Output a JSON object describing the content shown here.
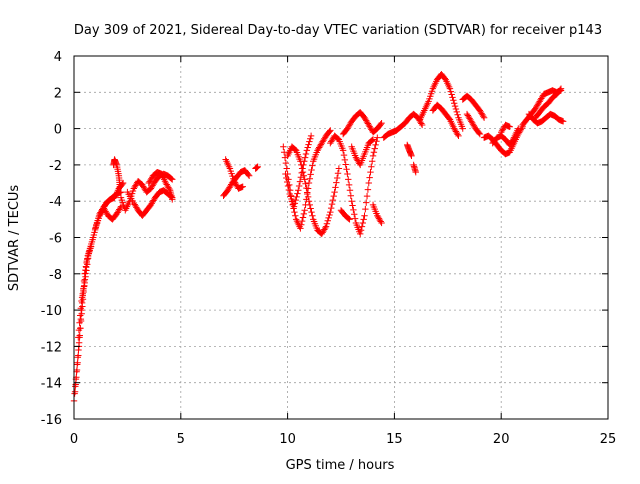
{
  "chart_data": {
    "type": "scatter",
    "title": "Day 309 of 2021, Sidereal Day-to-day VTEC variation (SDTVAR) for receiver p143",
    "xlabel": "GPS time / hours",
    "ylabel": "SDTVAR / TECUs",
    "xlim": [
      0,
      25
    ],
    "ylim": [
      -16,
      4
    ],
    "xticks": [
      0,
      5,
      10,
      15,
      20,
      25
    ],
    "yticks": [
      -16,
      -14,
      -12,
      -10,
      -8,
      -6,
      -4,
      -2,
      0,
      2,
      4
    ],
    "grid": true,
    "marker": "+",
    "color": "#ff0000",
    "series": [
      {
        "name": "SDTVAR",
        "segments": [
          [
            [
              0.0,
              -15.0
            ],
            [
              0.15,
              -13.0
            ],
            [
              0.3,
              -11.0
            ],
            [
              0.45,
              -9.0
            ],
            [
              0.6,
              -7.3
            ],
            [
              0.75,
              -6.6
            ],
            [
              0.9,
              -6.0
            ],
            [
              1.05,
              -5.3
            ],
            [
              1.2,
              -4.7
            ],
            [
              1.4,
              -4.3
            ],
            [
              1.6,
              -4.0
            ],
            [
              1.8,
              -3.8
            ],
            [
              2.0,
              -3.6
            ],
            [
              2.2,
              -3.5
            ]
          ],
          [
            [
              0.05,
              -14.5
            ],
            [
              0.2,
              -12.5
            ],
            [
              0.35,
              -10.0
            ],
            [
              0.5,
              -8.0
            ],
            [
              0.65,
              -7.0
            ],
            [
              0.8,
              -6.5
            ]
          ],
          [
            [
              0.2,
              -11.5
            ],
            [
              0.35,
              -9.5
            ],
            [
              0.5,
              -8.5
            ],
            [
              0.7,
              -6.8
            ]
          ],
          [
            [
              1.0,
              -5.5
            ],
            [
              1.2,
              -4.8
            ],
            [
              1.4,
              -4.4
            ],
            [
              1.6,
              -4.8
            ],
            [
              1.8,
              -5.0
            ],
            [
              2.0,
              -4.7
            ],
            [
              2.2,
              -4.3
            ]
          ],
          [
            [
              1.3,
              -4.6
            ],
            [
              1.5,
              -4.1
            ],
            [
              1.7,
              -3.9
            ],
            [
              1.9,
              -3.8
            ],
            [
              2.1,
              -3.3
            ],
            [
              2.3,
              -3.0
            ]
          ],
          [
            [
              1.85,
              -2.0
            ],
            [
              1.9,
              -1.7
            ],
            [
              2.0,
              -2.0
            ],
            [
              2.1,
              -2.6
            ],
            [
              2.15,
              -3.2
            ]
          ],
          [
            [
              2.2,
              -3.8
            ],
            [
              2.4,
              -4.5
            ],
            [
              2.6,
              -4.0
            ],
            [
              2.8,
              -3.3
            ],
            [
              3.0,
              -2.9
            ],
            [
              3.2,
              -3.1
            ],
            [
              3.4,
              -3.5
            ],
            [
              3.6,
              -3.3
            ],
            [
              3.8,
              -2.9
            ],
            [
              4.0,
              -2.6
            ],
            [
              4.2,
              -2.5
            ],
            [
              4.4,
              -2.6
            ],
            [
              4.6,
              -2.8
            ]
          ],
          [
            [
              2.5,
              -3.5
            ],
            [
              2.8,
              -4.1
            ],
            [
              3.0,
              -4.5
            ],
            [
              3.2,
              -4.8
            ],
            [
              3.4,
              -4.5
            ],
            [
              3.6,
              -4.2
            ],
            [
              3.8,
              -3.8
            ],
            [
              4.0,
              -3.5
            ],
            [
              4.2,
              -3.4
            ],
            [
              4.4,
              -3.6
            ],
            [
              4.6,
              -3.8
            ]
          ],
          [
            [
              3.5,
              -3.0
            ],
            [
              3.7,
              -2.6
            ],
            [
              3.9,
              -2.4
            ],
            [
              4.1,
              -2.5
            ],
            [
              4.3,
              -3.0
            ],
            [
              4.5,
              -3.4
            ],
            [
              4.6,
              -3.9
            ]
          ],
          [
            [
              7.0,
              -3.7
            ],
            [
              7.2,
              -3.4
            ],
            [
              7.4,
              -3.0
            ],
            [
              7.6,
              -2.7
            ],
            [
              7.8,
              -2.4
            ],
            [
              8.0,
              -2.3
            ],
            [
              8.2,
              -2.6
            ]
          ],
          [
            [
              7.1,
              -1.7
            ],
            [
              7.3,
              -2.2
            ],
            [
              7.5,
              -2.9
            ],
            [
              7.7,
              -3.3
            ],
            [
              7.9,
              -3.2
            ]
          ],
          [
            [
              8.5,
              -2.2
            ],
            [
              8.6,
              -2.1
            ]
          ],
          [
            [
              9.8,
              -1.0
            ],
            [
              10.0,
              -2.5
            ],
            [
              10.2,
              -4.0
            ],
            [
              10.4,
              -5.0
            ],
            [
              10.6,
              -5.5
            ],
            [
              10.8,
              -4.5
            ],
            [
              11.0,
              -3.0
            ],
            [
              11.2,
              -1.8
            ],
            [
              11.4,
              -1.2
            ],
            [
              11.6,
              -0.8
            ],
            [
              11.8,
              -0.4
            ],
            [
              12.0,
              -0.1
            ]
          ],
          [
            [
              9.9,
              -2.5
            ],
            [
              10.1,
              -3.6
            ],
            [
              10.3,
              -4.3
            ],
            [
              10.5,
              -3.4
            ],
            [
              10.7,
              -2.2
            ],
            [
              10.9,
              -1.2
            ],
            [
              11.1,
              -0.4
            ]
          ],
          [
            [
              10.0,
              -1.5
            ],
            [
              10.2,
              -1.0
            ],
            [
              10.4,
              -1.2
            ],
            [
              10.6,
              -1.8
            ],
            [
              10.8,
              -2.8
            ],
            [
              11.0,
              -4.0
            ],
            [
              11.2,
              -5.0
            ],
            [
              11.4,
              -5.6
            ],
            [
              11.6,
              -5.8
            ],
            [
              11.8,
              -5.4
            ],
            [
              12.0,
              -4.6
            ],
            [
              12.2,
              -3.5
            ],
            [
              12.4,
              -2.2
            ]
          ],
          [
            [
              12.0,
              -0.8
            ],
            [
              12.2,
              -0.4
            ],
            [
              12.4,
              -0.6
            ],
            [
              12.6,
              -1.2
            ],
            [
              12.8,
              -2.5
            ],
            [
              13.0,
              -4.0
            ],
            [
              13.2,
              -5.2
            ],
            [
              13.4,
              -5.8
            ],
            [
              13.6,
              -4.8
            ],
            [
              13.8,
              -3.0
            ],
            [
              14.0,
              -1.5
            ],
            [
              14.2,
              -0.5
            ]
          ],
          [
            [
              12.6,
              -0.3
            ],
            [
              12.8,
              0.0
            ],
            [
              13.0,
              0.4
            ],
            [
              13.2,
              0.7
            ],
            [
              13.4,
              0.9
            ],
            [
              13.6,
              0.6
            ],
            [
              13.8,
              0.2
            ],
            [
              14.0,
              -0.2
            ],
            [
              14.2,
              0.0
            ],
            [
              14.4,
              0.3
            ]
          ],
          [
            [
              13.0,
              -1.0
            ],
            [
              13.2,
              -1.6
            ],
            [
              13.4,
              -2.0
            ],
            [
              13.6,
              -1.4
            ],
            [
              13.8,
              -0.8
            ],
            [
              14.0,
              -0.6
            ]
          ],
          [
            [
              12.5,
              -4.5
            ],
            [
              12.7,
              -4.8
            ],
            [
              12.9,
              -5.0
            ]
          ],
          [
            [
              14.0,
              -4.2
            ],
            [
              14.2,
              -4.8
            ],
            [
              14.4,
              -5.2
            ]
          ],
          [
            [
              14.5,
              -0.5
            ],
            [
              14.7,
              -0.3
            ],
            [
              14.9,
              -0.2
            ],
            [
              15.1,
              -0.1
            ],
            [
              15.3,
              0.1
            ],
            [
              15.5,
              0.3
            ],
            [
              15.7,
              0.6
            ],
            [
              15.9,
              0.8
            ],
            [
              16.1,
              0.6
            ],
            [
              16.3,
              0.2
            ]
          ],
          [
            [
              15.6,
              -0.9
            ],
            [
              15.7,
              -1.2
            ],
            [
              15.8,
              -1.5
            ]
          ],
          [
            [
              15.9,
              -2.0
            ],
            [
              16.0,
              -2.4
            ]
          ],
          [
            [
              16.2,
              0.5
            ],
            [
              16.4,
              1.0
            ],
            [
              16.6,
              1.5
            ],
            [
              16.8,
              2.2
            ],
            [
              17.0,
              2.7
            ],
            [
              17.2,
              3.0
            ],
            [
              17.4,
              2.7
            ],
            [
              17.6,
              2.2
            ],
            [
              17.8,
              1.4
            ],
            [
              18.0,
              0.6
            ],
            [
              18.2,
              0.0
            ]
          ],
          [
            [
              16.8,
              1.0
            ],
            [
              17.0,
              1.3
            ],
            [
              17.2,
              1.1
            ],
            [
              17.4,
              0.8
            ],
            [
              17.6,
              0.5
            ],
            [
              17.8,
              0.0
            ],
            [
              18.0,
              -0.4
            ]
          ],
          [
            [
              18.2,
              1.6
            ],
            [
              18.4,
              1.8
            ],
            [
              18.6,
              1.6
            ],
            [
              18.8,
              1.3
            ],
            [
              19.0,
              1.0
            ],
            [
              19.2,
              0.6
            ]
          ],
          [
            [
              18.4,
              0.8
            ],
            [
              18.6,
              0.4
            ],
            [
              18.8,
              0.0
            ],
            [
              19.0,
              -0.3
            ]
          ],
          [
            [
              19.2,
              -0.5
            ],
            [
              19.4,
              -0.4
            ],
            [
              19.6,
              -0.6
            ],
            [
              19.8,
              -0.9
            ],
            [
              20.0,
              -1.2
            ],
            [
              20.2,
              -1.4
            ],
            [
              20.4,
              -1.3
            ],
            [
              20.6,
              -0.8
            ],
            [
              20.8,
              -0.3
            ],
            [
              21.0,
              0.1
            ]
          ],
          [
            [
              19.6,
              -0.8
            ],
            [
              19.8,
              -0.5
            ],
            [
              20.0,
              -0.4
            ],
            [
              20.2,
              -0.6
            ],
            [
              20.4,
              -0.9
            ],
            [
              20.6,
              -0.5
            ],
            [
              20.8,
              0.0
            ]
          ],
          [
            [
              20.0,
              -0.2
            ],
            [
              20.2,
              0.2
            ],
            [
              20.4,
              0.1
            ]
          ],
          [
            [
              21.0,
              0.2
            ],
            [
              21.2,
              0.5
            ],
            [
              21.4,
              0.8
            ],
            [
              21.6,
              1.1
            ],
            [
              21.8,
              1.5
            ],
            [
              22.0,
              1.9
            ],
            [
              22.2,
              2.0
            ],
            [
              22.4,
              2.1
            ],
            [
              22.6,
              2.0
            ],
            [
              22.8,
              2.1
            ]
          ],
          [
            [
              21.6,
              0.6
            ],
            [
              21.8,
              0.9
            ],
            [
              22.0,
              1.2
            ],
            [
              22.2,
              1.4
            ],
            [
              22.4,
              1.7
            ],
            [
              22.6,
              1.9
            ],
            [
              22.8,
              2.2
            ]
          ],
          [
            [
              21.3,
              0.8
            ],
            [
              21.5,
              0.5
            ],
            [
              21.7,
              0.3
            ],
            [
              21.9,
              0.4
            ],
            [
              22.1,
              0.6
            ],
            [
              22.3,
              0.8
            ],
            [
              22.5,
              0.7
            ],
            [
              22.7,
              0.5
            ],
            [
              22.9,
              0.4
            ]
          ]
        ]
      }
    ]
  }
}
